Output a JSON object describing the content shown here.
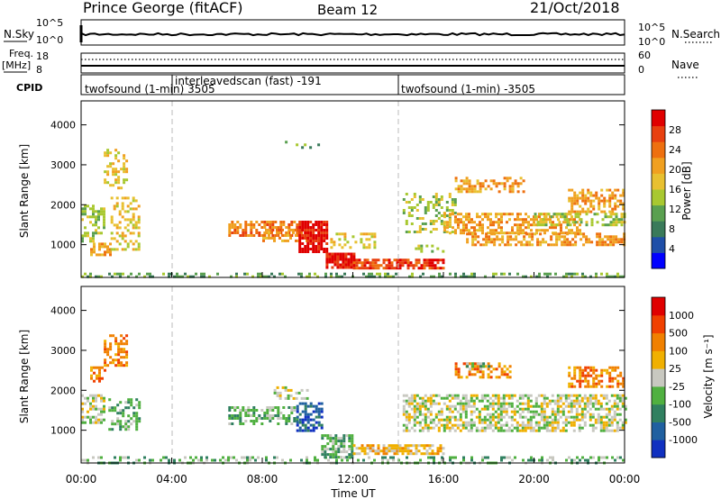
{
  "header": {
    "station": "Prince George (fitACF)",
    "beam": "Beam 12",
    "date": "21/Oct/2018"
  },
  "strip": {
    "nsky_label": "N.Sky",
    "nsky_ticks": [
      "10^5",
      "10^0"
    ],
    "nsearch_ticks": [
      "10^5",
      "10^0"
    ],
    "nsearch_label": "N.Search",
    "freq_label": "Freq.",
    "freq_unit": "[MHz]",
    "freq_ticks": [
      "18",
      "8"
    ],
    "nave_ticks": [
      "60",
      "0"
    ],
    "nave_label": "Nave",
    "cpid_label": "CPID",
    "programs": [
      {
        "text": "twofsound (1-min) 3505",
        "start_h": 0
      },
      {
        "text": "interleavedscan (fast) -191",
        "start_h": 4
      },
      {
        "text": "twofsound (1-min) -3505",
        "start_h": 14
      }
    ]
  },
  "power_colorbar": {
    "label": "Power [dB]",
    "ticks": [
      "28",
      "24",
      "20",
      "16",
      "12",
      "8",
      "4"
    ],
    "colors": [
      "#0000ff",
      "#1f4fa8",
      "#3a7a5a",
      "#5aa050",
      "#a8c830",
      "#e8c030",
      "#f0a020",
      "#ee7010",
      "#e84010",
      "#e00000"
    ]
  },
  "velocity_colorbar": {
    "label": "Velocity [m s⁻¹]",
    "ticks": [
      "1000",
      "500",
      "100",
      "25",
      "-25",
      "-100",
      "-500",
      "-1000"
    ],
    "colors": [
      "#1030c0",
      "#2060a0",
      "#308060",
      "#50b040",
      "#c8c8c0",
      "#f0b000",
      "#f08000",
      "#f04000",
      "#e00000"
    ]
  },
  "axes": {
    "ylabel": "Slant Range [km]",
    "xlabel": "Time UT",
    "xticks": [
      "00:00",
      "04:00",
      "08:00",
      "12:00",
      "16:00",
      "20:00",
      "00:00"
    ],
    "yticks": [
      "4000",
      "3000",
      "2000",
      "1000"
    ]
  },
  "chart_data": [
    {
      "type": "heatmap",
      "name": "power",
      "x_unit": "hours UT",
      "y_unit": "km",
      "xlim": [
        0,
        24
      ],
      "ylim": [
        180,
        4600
      ],
      "vertical_lines_h": [
        4,
        14
      ],
      "regions": [
        {
          "t0": 0.0,
          "t1": 24.0,
          "r0": 200,
          "r1": 300,
          "level": 3,
          "dens": 0.45
        },
        {
          "t0": 0.0,
          "t1": 1.0,
          "r0": 1100,
          "r1": 2000,
          "level": 4,
          "dens": 0.5
        },
        {
          "t0": 0.4,
          "t1": 1.3,
          "r0": 750,
          "r1": 1050,
          "level": 6,
          "dens": 0.6
        },
        {
          "t0": 1.0,
          "t1": 2.0,
          "r0": 2400,
          "r1": 3400,
          "level": 5,
          "dens": 0.4
        },
        {
          "t0": 1.3,
          "t1": 2.6,
          "r0": 900,
          "r1": 2200,
          "level": 5,
          "dens": 0.4
        },
        {
          "t0": 6.5,
          "t1": 9.5,
          "r0": 1200,
          "r1": 1600,
          "level": 7,
          "dens": 0.7
        },
        {
          "t0": 8.0,
          "t1": 10.0,
          "r0": 1100,
          "r1": 1400,
          "level": 6,
          "dens": 0.6
        },
        {
          "t0": 9.6,
          "t1": 10.8,
          "r0": 800,
          "r1": 1600,
          "level": 9,
          "dens": 0.85
        },
        {
          "t0": 10.8,
          "t1": 12.0,
          "r0": 400,
          "r1": 800,
          "level": 9,
          "dens": 0.85
        },
        {
          "t0": 12.0,
          "t1": 16.0,
          "r0": 380,
          "r1": 650,
          "level": 8,
          "dens": 0.75
        },
        {
          "t0": 11.0,
          "t1": 13.0,
          "r0": 900,
          "r1": 1300,
          "level": 5,
          "dens": 0.35
        },
        {
          "t0": 14.2,
          "t1": 16.5,
          "r0": 1300,
          "r1": 2300,
          "level": 4,
          "dens": 0.35
        },
        {
          "t0": 16.0,
          "t1": 22.0,
          "r0": 1300,
          "r1": 1800,
          "level": 6,
          "dens": 0.55
        },
        {
          "t0": 17.0,
          "t1": 24.0,
          "r0": 1000,
          "r1": 1300,
          "level": 6,
          "dens": 0.5
        },
        {
          "t0": 16.5,
          "t1": 19.5,
          "r0": 2300,
          "r1": 2700,
          "level": 6,
          "dens": 0.5
        },
        {
          "t0": 21.5,
          "t1": 24.0,
          "r0": 1800,
          "r1": 2400,
          "level": 6,
          "dens": 0.55
        },
        {
          "t0": 20.0,
          "t1": 24.0,
          "r0": 1500,
          "r1": 1800,
          "level": 4,
          "dens": 0.5
        },
        {
          "t0": 14.5,
          "t1": 16.0,
          "r0": 800,
          "r1": 1000,
          "level": 4,
          "dens": 0.3
        },
        {
          "t0": 9.0,
          "t1": 10.5,
          "r0": 3400,
          "r1": 3600,
          "level": 3,
          "dens": 0.15
        }
      ]
    },
    {
      "type": "heatmap",
      "name": "velocity",
      "x_unit": "hours UT",
      "y_unit": "km",
      "xlim": [
        0,
        24
      ],
      "ylim": [
        180,
        4600
      ],
      "vertical_lines_h": [
        4,
        14
      ],
      "regions": [
        {
          "t0": 0.0,
          "t1": 24.0,
          "r0": 200,
          "r1": 350,
          "level": 3,
          "dens": 0.35
        },
        {
          "t0": 0.0,
          "t1": 1.0,
          "r0": 1200,
          "r1": 1900,
          "level": 4,
          "dens": 0.6
        },
        {
          "t0": 0.4,
          "t1": 1.0,
          "r0": 2200,
          "r1": 2600,
          "level": 6,
          "dens": 0.6
        },
        {
          "t0": 1.0,
          "t1": 2.0,
          "r0": 2600,
          "r1": 3400,
          "level": 6,
          "dens": 0.45
        },
        {
          "t0": 1.2,
          "t1": 2.6,
          "r0": 1000,
          "r1": 1800,
          "level": 3,
          "dens": 0.45
        },
        {
          "t0": 6.5,
          "t1": 9.5,
          "r0": 1150,
          "r1": 1600,
          "level": 3,
          "dens": 0.55
        },
        {
          "t0": 9.5,
          "t1": 10.6,
          "r0": 1000,
          "r1": 1700,
          "level": 1,
          "dens": 0.6
        },
        {
          "t0": 10.6,
          "t1": 12.0,
          "r0": 350,
          "r1": 900,
          "level": 3,
          "dens": 0.7
        },
        {
          "t0": 12.0,
          "t1": 16.0,
          "r0": 400,
          "r1": 650,
          "level": 5,
          "dens": 0.7
        },
        {
          "t0": 14.2,
          "t1": 24.0,
          "r0": 1000,
          "r1": 1900,
          "level": 4,
          "dens": 0.6
        },
        {
          "t0": 16.5,
          "t1": 19.0,
          "r0": 2300,
          "r1": 2700,
          "level": 6,
          "dens": 0.5
        },
        {
          "t0": 21.5,
          "t1": 24.0,
          "r0": 2100,
          "r1": 2600,
          "level": 6,
          "dens": 0.55
        },
        {
          "t0": 17.0,
          "t1": 18.0,
          "r0": 2500,
          "r1": 2700,
          "level": 3,
          "dens": 0.5
        },
        {
          "t0": 8.5,
          "t1": 10.0,
          "r0": 1800,
          "r1": 2100,
          "level": 4,
          "dens": 0.4
        }
      ]
    }
  ]
}
